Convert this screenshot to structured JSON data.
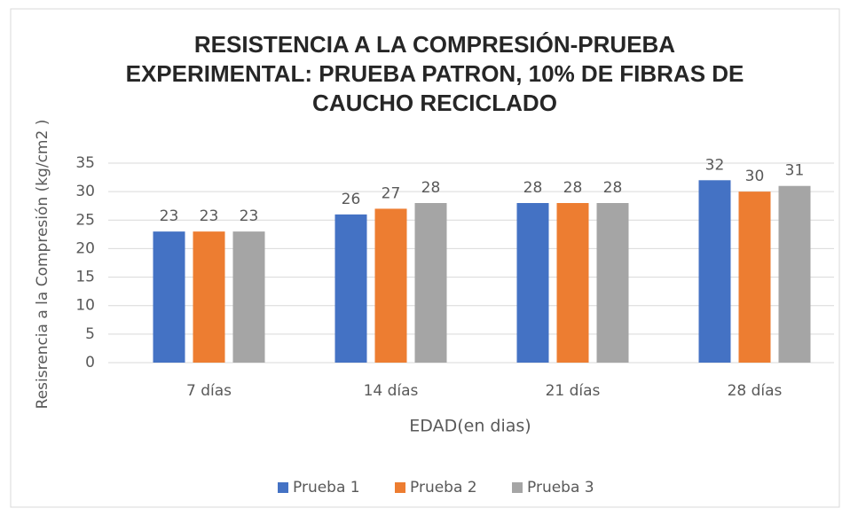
{
  "chart_data": {
    "type": "bar",
    "title": "RESISTENCIA A LA COMPRESIÓN-PRUEBA EXPERIMENTAL: PRUEBA PATRON, 10% DE FIBRAS DE CAUCHO RECICLADO",
    "y_label": "Resisrencia a la Compresión (kg/cm2 )",
    "x_label": "EDAD(en dias)",
    "categories": [
      "7 días",
      "14 días",
      "21 días",
      "28 días"
    ],
    "series": [
      {
        "name": "Prueba 1",
        "color": "#4472c4",
        "values": [
          23,
          26,
          28,
          32
        ]
      },
      {
        "name": "Prueba 2",
        "color": "#ed7d31",
        "values": [
          23,
          27,
          28,
          30
        ]
      },
      {
        "name": "Prueba 3",
        "color": "#a5a5a5",
        "values": [
          23,
          28,
          28,
          31
        ]
      }
    ],
    "ylim": [
      0,
      35
    ],
    "yticks": [
      0,
      5,
      10,
      15,
      20,
      25,
      30,
      35
    ],
    "grid": true,
    "legend": "bottom"
  }
}
